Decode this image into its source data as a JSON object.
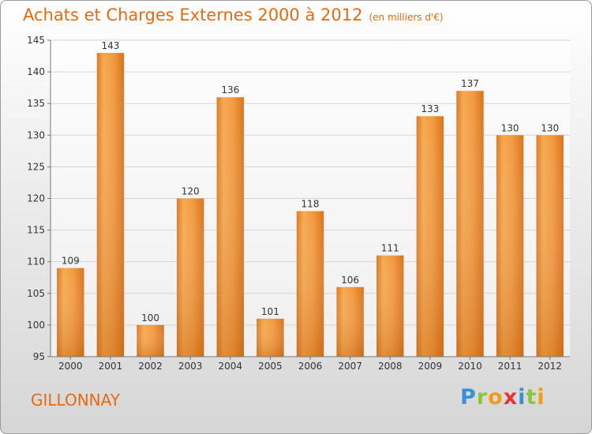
{
  "header": {
    "title": "Achats et Charges Externes 2000 à 2012",
    "unit": "(en milliers d'€)"
  },
  "footer": {
    "commune": "GILLONNAY",
    "brand": [
      "P",
      "r",
      "o",
      "x",
      "i",
      "t",
      "i"
    ],
    "brand_colors": [
      "#3a8fd6",
      "#8cc63e",
      "#f39c12",
      "#e8322d",
      "#3a8fd6",
      "#8cc63e",
      "#f39c12"
    ]
  },
  "colors": {
    "bar": "#f08a30",
    "bar_light": "#f7a94f",
    "bar_dark": "#d46a12",
    "title": "#e46a13"
  },
  "chart_data": {
    "type": "bar",
    "categories": [
      "2000",
      "2001",
      "2002",
      "2003",
      "2004",
      "2005",
      "2006",
      "2007",
      "2008",
      "2009",
      "2010",
      "2011",
      "2012"
    ],
    "values": [
      109,
      143,
      100,
      120,
      136,
      101,
      118,
      106,
      111,
      133,
      137,
      130,
      130
    ],
    "title": "Achats et Charges Externes 2000 à 2012",
    "xlabel": "",
    "ylabel": "",
    "ylim": [
      95,
      145
    ],
    "yticks": [
      95,
      100,
      105,
      110,
      115,
      120,
      125,
      130,
      135,
      140,
      145
    ],
    "grid": true
  }
}
